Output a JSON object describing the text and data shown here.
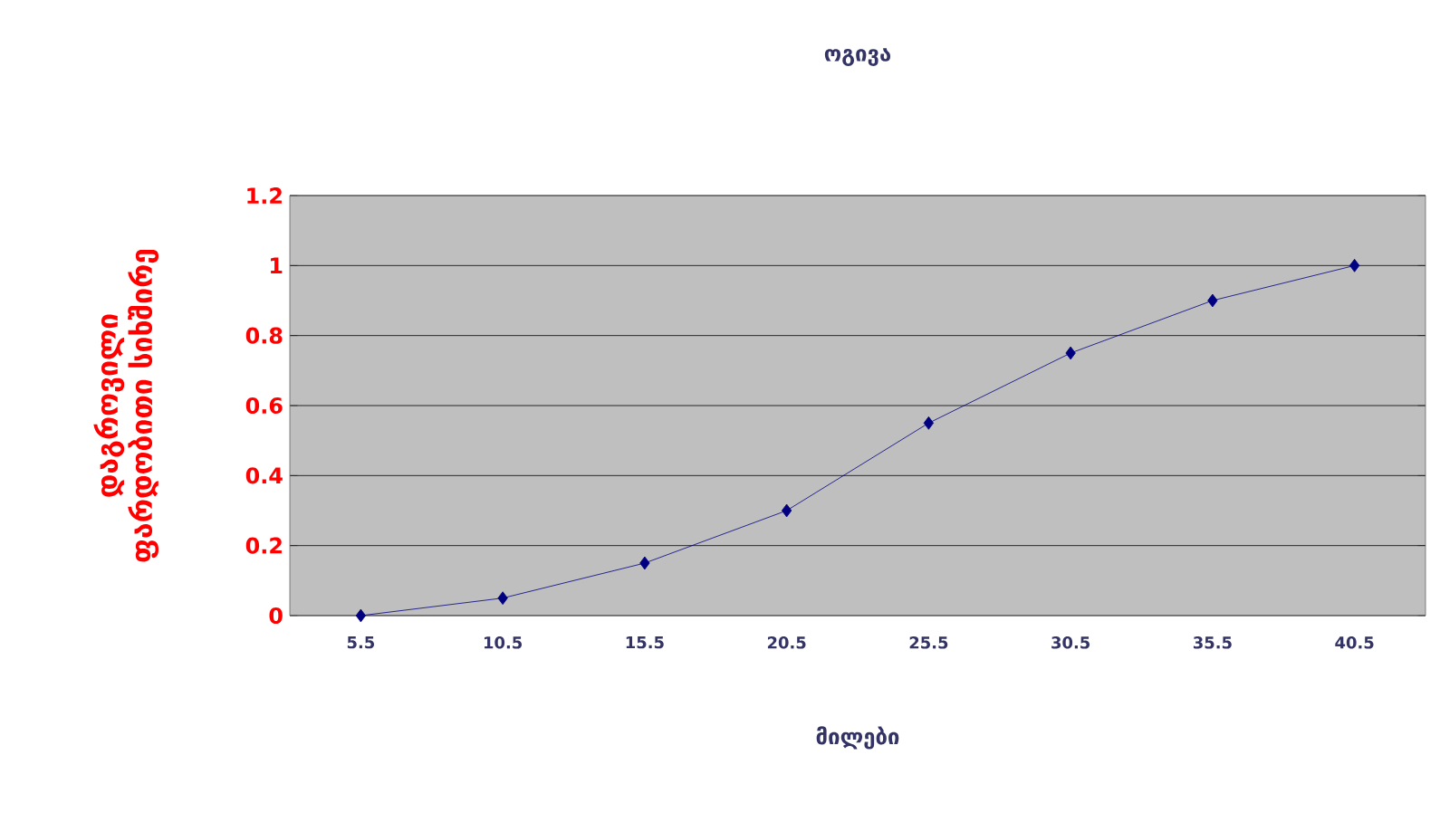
{
  "chart_data": {
    "type": "line",
    "title": "ოგივა",
    "xlabel": "მილები",
    "ylabel": "დაგროვილი ფარდობითი სიხშირე",
    "categories": [
      "5.5",
      "10.5",
      "15.5",
      "20.5",
      "25.5",
      "30.5",
      "35.5",
      "40.5"
    ],
    "series": [
      {
        "color": "#000080",
        "values": [
          0,
          0.05,
          0.15,
          0.3,
          0.55,
          0.75,
          0.9,
          1
        ]
      }
    ],
    "ylim": [
      0,
      1.2
    ],
    "yticks": [
      0,
      0.2,
      0.4,
      0.6,
      0.8,
      1,
      1.2
    ],
    "grid": "y",
    "marker": "diamond",
    "line_style": "solid"
  }
}
